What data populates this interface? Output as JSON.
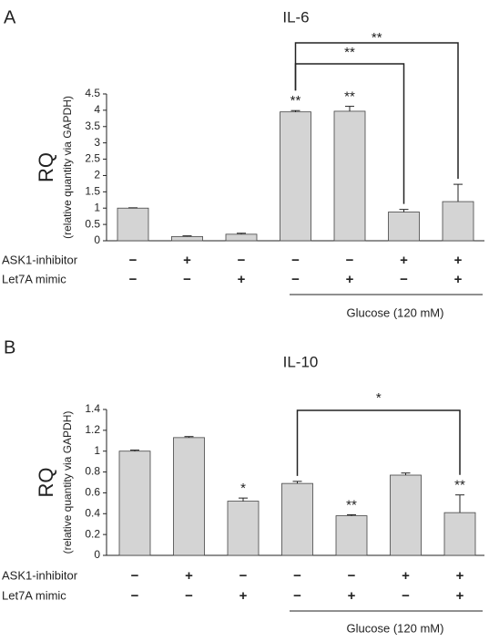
{
  "chart_data": [
    {
      "type": "bar",
      "panel": "A",
      "title": "IL-6",
      "y_label": "RQ",
      "y_sublabel": "(relative quantity via GAPDH)",
      "categories": [
        null,
        null,
        null,
        null,
        null,
        null,
        null
      ],
      "values": [
        1.0,
        0.13,
        0.2,
        3.95,
        3.97,
        0.88,
        1.2
      ],
      "errors": [
        0.01,
        0.02,
        0.03,
        0.04,
        0.15,
        0.08,
        0.53
      ],
      "stars": [
        null,
        null,
        null,
        "**",
        "**",
        null,
        null
      ],
      "comparisons": [
        "**",
        "**"
      ],
      "color": "#d4d4d4",
      "ylim": [
        0,
        4.5
      ],
      "yticks": [
        0,
        0.5,
        1,
        1.5,
        2,
        2.5,
        3,
        3.5,
        4,
        4.5
      ],
      "treatments": [
        {
          "label": "ASK1-inhibitor",
          "signs": [
            "−",
            "+",
            "−",
            "−",
            "−",
            "+",
            "+"
          ]
        },
        {
          "label": "Let7A mimic",
          "signs": [
            "−",
            "−",
            "+",
            "−",
            "+",
            "−",
            "+"
          ]
        }
      ],
      "annotation": "Glucose (120 mM)"
    },
    {
      "type": "bar",
      "panel": "B",
      "title": "IL-10",
      "y_label": "RQ",
      "y_sublabel": "(relative quantity via GAPDH)",
      "categories": [
        null,
        null,
        null,
        null,
        null,
        null,
        null
      ],
      "values": [
        1.0,
        1.13,
        0.52,
        0.69,
        0.38,
        0.77,
        0.41
      ],
      "errors": [
        0.01,
        0.01,
        0.03,
        0.02,
        0.01,
        0.02,
        0.17
      ],
      "stars": [
        null,
        null,
        "*",
        null,
        "**",
        null,
        "**"
      ],
      "comparisons": [
        "*"
      ],
      "color": "#d4d4d4",
      "ylim": [
        0,
        1.4
      ],
      "yticks": [
        0,
        0.2,
        0.4,
        0.6,
        0.8,
        1,
        1.2,
        1.4
      ],
      "treatments": [
        {
          "label": "ASK1-inhibitor",
          "signs": [
            "−",
            "+",
            "−",
            "−",
            "−",
            "+",
            "+"
          ]
        },
        {
          "label": "Let7A mimic",
          "signs": [
            "−",
            "−",
            "+",
            "−",
            "+",
            "−",
            "+"
          ]
        }
      ],
      "annotation": "Glucose (120 mM)"
    }
  ]
}
